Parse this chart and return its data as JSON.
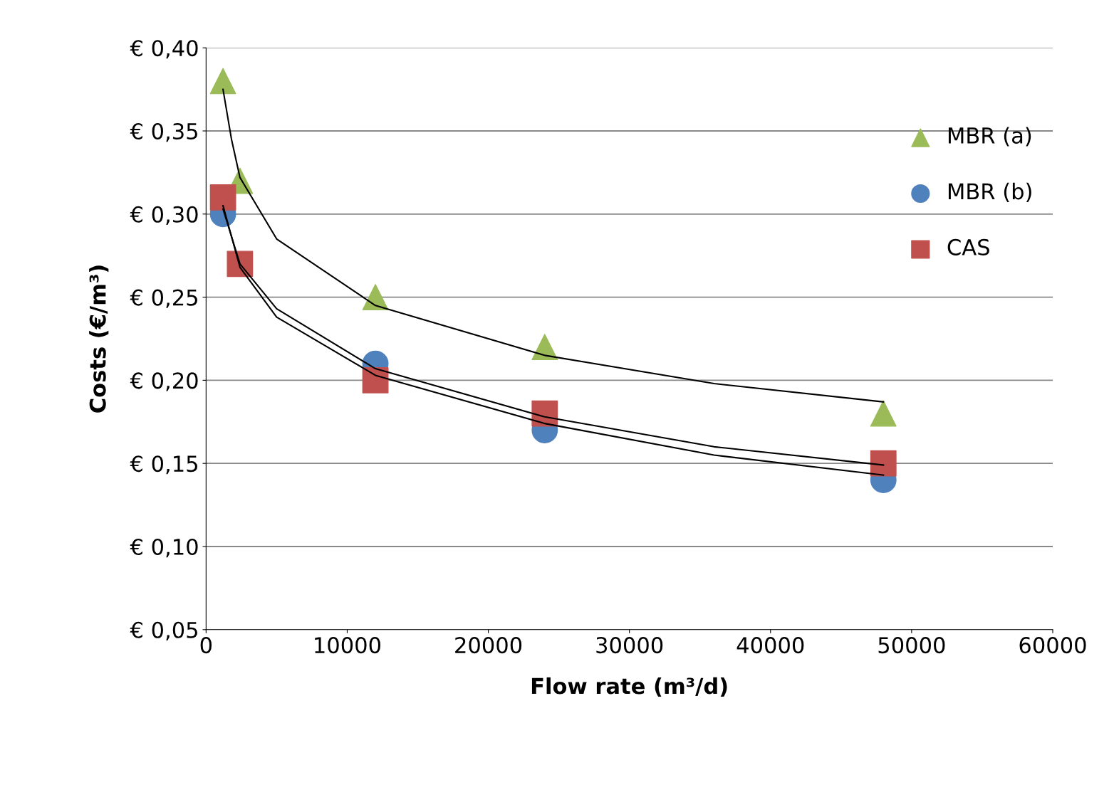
{
  "chart_data": {
    "type": "scatter",
    "xlabel": "Flow rate (m³/d)",
    "ylabel": "Costs (€/m³)",
    "xlim": [
      0,
      60000
    ],
    "xticks": [
      0,
      10000,
      20000,
      30000,
      40000,
      50000,
      60000
    ],
    "ylim": [
      0.05,
      0.4
    ],
    "yticks": [
      {
        "value": 0.05,
        "label": "€ 0,05"
      },
      {
        "value": 0.1,
        "label": "€ 0,10"
      },
      {
        "value": 0.15,
        "label": "€ 0,15"
      },
      {
        "value": 0.2,
        "label": "€ 0,20"
      },
      {
        "value": 0.25,
        "label": "€ 0,25"
      },
      {
        "value": 0.3,
        "label": "€ 0,30"
      },
      {
        "value": 0.35,
        "label": "€ 0,35"
      },
      {
        "value": 0.4,
        "label": "€ 0,40"
      }
    ],
    "grid": "y",
    "legend": "right",
    "series": [
      {
        "type": "line",
        "color": "#000000",
        "x": [
          1200,
          1800,
          2400,
          5000,
          12000,
          24000,
          36000,
          48000
        ],
        "values": [
          0.375,
          0.345,
          0.322,
          0.285,
          0.245,
          0.215,
          0.198,
          0.187
        ]
      },
      {
        "type": "line",
        "color": "#000000",
        "x": [
          1200,
          2400,
          5000,
          12000,
          24000,
          36000,
          48000
        ],
        "values": [
          0.305,
          0.268,
          0.238,
          0.203,
          0.174,
          0.155,
          0.143
        ]
      },
      {
        "type": "line",
        "color": "#000000",
        "x": [
          1200,
          2400,
          5000,
          12000,
          24000,
          36000,
          48000
        ],
        "values": [
          0.303,
          0.27,
          0.243,
          0.207,
          0.178,
          0.16,
          0.149
        ]
      },
      {
        "name": "MBR (a)",
        "marker": "triangle",
        "color": "#9bbb59",
        "x": [
          1200,
          2400,
          12000,
          24000,
          48000
        ],
        "values": [
          0.38,
          0.32,
          0.25,
          0.22,
          0.18
        ]
      },
      {
        "name": "MBR (b)",
        "marker": "circle",
        "color": "#4f81bd",
        "x": [
          1200,
          12000,
          24000,
          48000
        ],
        "values": [
          0.3,
          0.21,
          0.17,
          0.14
        ]
      },
      {
        "name": "CAS",
        "marker": "square",
        "color": "#c0504d",
        "x": [
          1200,
          2400,
          12000,
          24000,
          48000
        ],
        "values": [
          0.31,
          0.27,
          0.2,
          0.18,
          0.15
        ]
      }
    ]
  }
}
